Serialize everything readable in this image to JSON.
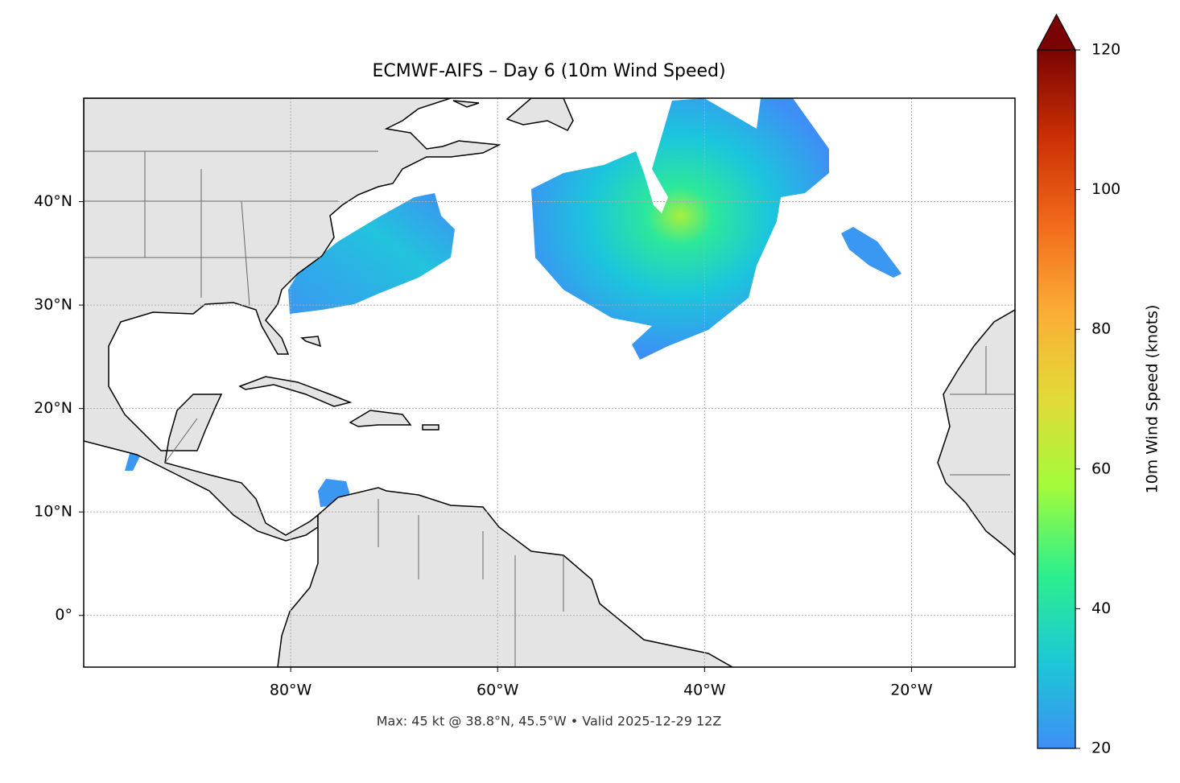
{
  "map": {
    "title": "ECMWF-AIFS – Day 6 (10m Wind Speed)",
    "note": "Max: 45 kt @ 38.8°N, 45.5°W • Valid 2025-12-29 12Z",
    "xlim": [
      -100,
      -10
    ],
    "ylim": [
      -5,
      50
    ],
    "xticks": [
      {
        "value": -80,
        "label": "80°W"
      },
      {
        "value": -60,
        "label": "60°W"
      },
      {
        "value": -40,
        "label": "40°W"
      },
      {
        "value": -20,
        "label": "20°W"
      }
    ],
    "yticks": [
      {
        "value": 0,
        "label": "0°"
      },
      {
        "value": 10,
        "label": "10°N"
      },
      {
        "value": 20,
        "label": "20°N"
      },
      {
        "value": 30,
        "label": "30°N"
      },
      {
        "value": 40,
        "label": "40°N"
      }
    ],
    "grid": true,
    "colorbar": {
      "label": "10m Wind Speed (knots)",
      "lim": [
        20,
        120
      ],
      "ticks": [
        20,
        40,
        60,
        80,
        100,
        120
      ],
      "colors": [
        "#3e8ff5",
        "#1bc9d6",
        "#2cf08c",
        "#a3fb3a",
        "#e2db37",
        "#fbad36",
        "#f26a1c",
        "#cb2f05",
        "#7a0403"
      ]
    }
  }
}
